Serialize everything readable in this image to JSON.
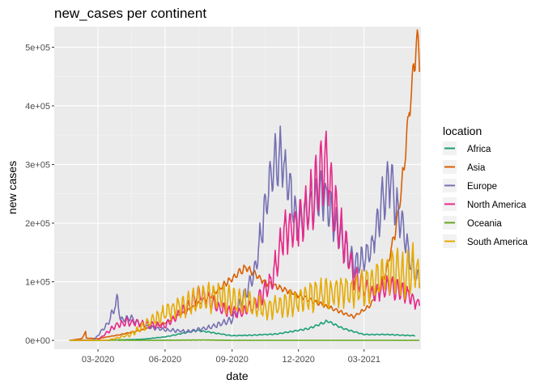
{
  "chart_data": {
    "type": "line",
    "title": "new_cases per continent",
    "xlabel": "date",
    "ylabel": "new cases",
    "x_range": [
      "2020-01-01",
      "2021-05-18"
    ],
    "x_ticks": [
      {
        "date": "2020-03-01",
        "label": "03-2020"
      },
      {
        "date": "2020-06-01",
        "label": "06-2020"
      },
      {
        "date": "2020-09-01",
        "label": "09-2020"
      },
      {
        "date": "2020-12-01",
        "label": "12-2020"
      },
      {
        "date": "2021-03-01",
        "label": "03-2021"
      }
    ],
    "ylim": [
      -15000,
      535000
    ],
    "y_ticks": [
      {
        "value": 0,
        "label": "0e+00"
      },
      {
        "value": 100000,
        "label": "1e+05"
      },
      {
        "value": 200000,
        "label": "2e+05"
      },
      {
        "value": 300000,
        "label": "3e+05"
      },
      {
        "value": 400000,
        "label": "4e+05"
      },
      {
        "value": 500000,
        "label": "5e+05"
      }
    ],
    "grid": true,
    "legend": {
      "title": "location",
      "placement": "right"
    },
    "series": [
      {
        "name": "Africa",
        "color": "#1B9E77",
        "noise": 0.08,
        "points": [
          [
            "2020-01-22",
            0
          ],
          [
            "2020-03-15",
            300
          ],
          [
            "2020-05-01",
            2000
          ],
          [
            "2020-06-01",
            6000
          ],
          [
            "2020-07-15",
            17000
          ],
          [
            "2020-08-01",
            14000
          ],
          [
            "2020-09-01",
            8000
          ],
          [
            "2020-10-01",
            9000
          ],
          [
            "2020-11-01",
            11000
          ],
          [
            "2020-12-15",
            20000
          ],
          [
            "2021-01-10",
            33000
          ],
          [
            "2021-02-01",
            20000
          ],
          [
            "2021-03-01",
            10000
          ],
          [
            "2021-04-01",
            10000
          ],
          [
            "2021-05-10",
            8000
          ]
        ]
      },
      {
        "name": "Asia",
        "color": "#D95F02",
        "noise": 0.06,
        "points": [
          [
            "2020-01-22",
            0
          ],
          [
            "2020-02-08",
            3000
          ],
          [
            "2020-02-13",
            15000
          ],
          [
            "2020-02-14",
            4000
          ],
          [
            "2020-03-01",
            3000
          ],
          [
            "2020-04-01",
            10000
          ],
          [
            "2020-05-01",
            18000
          ],
          [
            "2020-06-01",
            30000
          ],
          [
            "2020-07-01",
            50000
          ],
          [
            "2020-08-01",
            75000
          ],
          [
            "2020-09-10",
            115000
          ],
          [
            "2020-09-20",
            125000
          ],
          [
            "2020-10-15",
            100000
          ],
          [
            "2020-11-15",
            85000
          ],
          [
            "2020-12-15",
            70000
          ],
          [
            "2021-01-15",
            55000
          ],
          [
            "2021-02-15",
            40000
          ],
          [
            "2021-03-10",
            60000
          ],
          [
            "2021-04-01",
            120000
          ],
          [
            "2021-04-15",
            200000
          ],
          [
            "2021-04-25",
            300000
          ],
          [
            "2021-05-01",
            380000
          ],
          [
            "2021-05-07",
            450000
          ],
          [
            "2021-05-12",
            515000
          ],
          [
            "2021-05-16",
            470000
          ]
        ]
      },
      {
        "name": "Europe",
        "color": "#7570B3",
        "noise": 0.18,
        "points": [
          [
            "2020-01-22",
            0
          ],
          [
            "2020-02-25",
            1000
          ],
          [
            "2020-03-15",
            30000
          ],
          [
            "2020-03-28",
            70000
          ],
          [
            "2020-04-01",
            35000
          ],
          [
            "2020-04-15",
            38000
          ],
          [
            "2020-05-01",
            25000
          ],
          [
            "2020-06-01",
            18000
          ],
          [
            "2020-07-01",
            15000
          ],
          [
            "2020-08-01",
            22000
          ],
          [
            "2020-09-01",
            35000
          ],
          [
            "2020-10-01",
            110000
          ],
          [
            "2020-10-20",
            250000
          ],
          [
            "2020-11-01",
            320000
          ],
          [
            "2020-11-10",
            300000
          ],
          [
            "2020-12-01",
            200000
          ],
          [
            "2020-12-20",
            230000
          ],
          [
            "2021-01-05",
            250000
          ],
          [
            "2021-01-25",
            180000
          ],
          [
            "2021-02-15",
            130000
          ],
          [
            "2021-03-10",
            150000
          ],
          [
            "2021-03-25",
            230000
          ],
          [
            "2021-04-05",
            280000
          ],
          [
            "2021-04-20",
            200000
          ],
          [
            "2021-05-05",
            130000
          ],
          [
            "2021-05-16",
            100000
          ]
        ]
      },
      {
        "name": "North America",
        "color": "#E7298A",
        "noise": 0.22,
        "points": [
          [
            "2020-01-22",
            0
          ],
          [
            "2020-03-01",
            500
          ],
          [
            "2020-03-25",
            25000
          ],
          [
            "2020-04-10",
            32000
          ],
          [
            "2020-05-01",
            28000
          ],
          [
            "2020-06-01",
            25000
          ],
          [
            "2020-07-01",
            55000
          ],
          [
            "2020-07-20",
            80000
          ],
          [
            "2020-08-15",
            55000
          ],
          [
            "2020-09-10",
            45000
          ],
          [
            "2020-10-01",
            60000
          ],
          [
            "2020-10-25",
            100000
          ],
          [
            "2020-11-10",
            180000
          ],
          [
            "2020-12-01",
            200000
          ],
          [
            "2020-12-20",
            240000
          ],
          [
            "2021-01-08",
            300000
          ],
          [
            "2021-01-25",
            200000
          ],
          [
            "2021-02-15",
            110000
          ],
          [
            "2021-03-10",
            80000
          ],
          [
            "2021-04-05",
            95000
          ],
          [
            "2021-05-01",
            75000
          ],
          [
            "2021-05-16",
            60000
          ]
        ]
      },
      {
        "name": "Oceania",
        "color": "#66A61E",
        "noise": 0.25,
        "points": [
          [
            "2020-01-22",
            0
          ],
          [
            "2020-03-25",
            500
          ],
          [
            "2020-05-01",
            100
          ],
          [
            "2020-07-25",
            700
          ],
          [
            "2020-09-01",
            200
          ],
          [
            "2021-05-16",
            100
          ]
        ]
      },
      {
        "name": "South America",
        "color": "#E6AB02",
        "noise": 0.35,
        "points": [
          [
            "2020-01-22",
            0
          ],
          [
            "2020-03-15",
            500
          ],
          [
            "2020-04-15",
            10000
          ],
          [
            "2020-05-15",
            35000
          ],
          [
            "2020-06-15",
            55000
          ],
          [
            "2020-07-15",
            70000
          ],
          [
            "2020-08-15",
            75000
          ],
          [
            "2020-09-15",
            65000
          ],
          [
            "2020-10-15",
            55000
          ],
          [
            "2020-11-15",
            60000
          ],
          [
            "2020-12-15",
            75000
          ],
          [
            "2021-01-15",
            80000
          ],
          [
            "2021-02-15",
            85000
          ],
          [
            "2021-03-15",
            100000
          ],
          [
            "2021-04-05",
            120000
          ],
          [
            "2021-04-25",
            110000
          ],
          [
            "2021-05-10",
            125000
          ],
          [
            "2021-05-16",
            100000
          ]
        ]
      }
    ]
  }
}
